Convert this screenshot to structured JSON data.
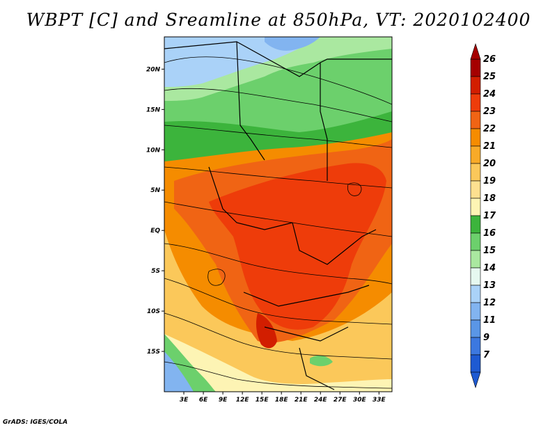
{
  "title": "WBPT [C] and Sreamline at 850hPa, VT: 2020102400",
  "footer": "GrADS: IGES/COLA",
  "map": {
    "lon_range": [
      0,
      35
    ],
    "lat_range": [
      -20,
      24
    ],
    "lat_ticks": [
      {
        "value": 20,
        "label": "20N"
      },
      {
        "value": 15,
        "label": "15N"
      },
      {
        "value": 10,
        "label": "10N"
      },
      {
        "value": 5,
        "label": "5N"
      },
      {
        "value": 0,
        "label": "EQ"
      },
      {
        "value": -5,
        "label": "5S"
      },
      {
        "value": -10,
        "label": "10S"
      },
      {
        "value": -15,
        "label": "15S"
      }
    ],
    "lon_ticks": [
      {
        "value": 3,
        "label": "3E"
      },
      {
        "value": 6,
        "label": "6E"
      },
      {
        "value": 9,
        "label": "9E"
      },
      {
        "value": 12,
        "label": "12E"
      },
      {
        "value": 15,
        "label": "15E"
      },
      {
        "value": 18,
        "label": "18E"
      },
      {
        "value": 21,
        "label": "21E"
      },
      {
        "value": 24,
        "label": "24E"
      },
      {
        "value": 27,
        "label": "27E"
      },
      {
        "value": 30,
        "label": "30E"
      },
      {
        "value": 33,
        "label": "33E"
      }
    ]
  },
  "colorbar": {
    "labels": [
      "26",
      "25",
      "24",
      "23",
      "22",
      "21",
      "20",
      "19",
      "18",
      "17",
      "16",
      "15",
      "14",
      "13",
      "12",
      "11",
      "9",
      "7"
    ],
    "colors": [
      "#a50000",
      "#d21e00",
      "#ee3c0a",
      "#f06414",
      "#f58c00",
      "#f8aa28",
      "#fbc85a",
      "#fde090",
      "#fdf4b4",
      "#3cb43c",
      "#6cd06c",
      "#aae8a0",
      "#e6f8f0",
      "#aad2f8",
      "#82b4f0",
      "#5a96e6",
      "#3c78e0",
      "#1e5ad2"
    ]
  }
}
